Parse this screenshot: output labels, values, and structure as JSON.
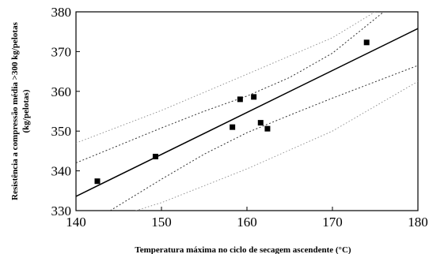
{
  "chart_data": {
    "type": "scatter",
    "title": "",
    "xlabel": "Temperatura máxima no ciclo de secagem  ascendente (°C)",
    "ylabel_lines": [
      "Resistência a compressão média >300 kg/pelotas",
      "(kg/pelotas)"
    ],
    "xlim": [
      140,
      180
    ],
    "ylim": [
      330,
      380
    ],
    "x_ticks": [
      140,
      150,
      160,
      170,
      180
    ],
    "y_ticks": [
      330,
      340,
      350,
      360,
      370,
      380
    ],
    "grid": false,
    "points": [
      {
        "x": 142.5,
        "y": 337.4
      },
      {
        "x": 149.3,
        "y": 343.6
      },
      {
        "x": 158.3,
        "y": 351.0
      },
      {
        "x": 159.2,
        "y": 358.0
      },
      {
        "x": 160.8,
        "y": 358.6
      },
      {
        "x": 161.6,
        "y": 352.1
      },
      {
        "x": 162.4,
        "y": 350.6
      },
      {
        "x": 174.0,
        "y": 372.3
      }
    ],
    "fit_line": {
      "x": [
        140,
        180
      ],
      "y": [
        333.6,
        375.8
      ],
      "style": "solid"
    },
    "confidence_upper": {
      "x": [
        140,
        150,
        155,
        160,
        165,
        170,
        176
      ],
      "y": [
        342.0,
        350.8,
        355.0,
        358.8,
        363.5,
        369.6,
        380.0
      ],
      "style": "dotted"
    },
    "confidence_lower": {
      "x": [
        144,
        150,
        155,
        160,
        165,
        170,
        180
      ],
      "y": [
        330.0,
        337.9,
        344.2,
        349.6,
        354.0,
        358.3,
        366.5
      ],
      "style": "dotted"
    },
    "prediction_upper": {
      "x": [
        140,
        150,
        160,
        170,
        175
      ],
      "y": [
        347.0,
        355.2,
        364.3,
        373.5,
        380.0
      ],
      "style": "light-dotted"
    },
    "prediction_lower": {
      "x": [
        147,
        150,
        160,
        170,
        180
      ],
      "y": [
        330.0,
        332.0,
        340.5,
        350.0,
        362.5
      ],
      "style": "light-dotted"
    }
  }
}
